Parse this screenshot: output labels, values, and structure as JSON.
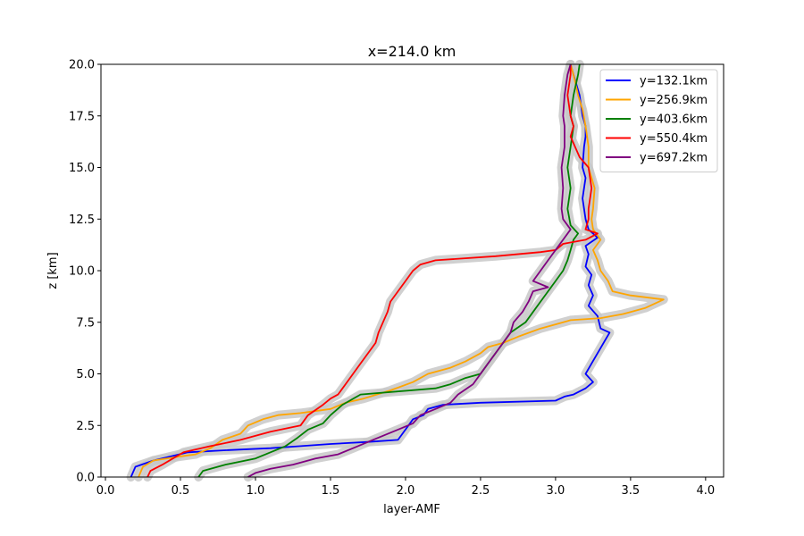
{
  "chart_data": {
    "type": "line",
    "title": "x=214.0 km",
    "xlabel": "layer-AMF",
    "ylabel": "z [km]",
    "xlim": [
      -0.03,
      4.12
    ],
    "ylim": [
      0,
      20
    ],
    "xticks": [
      "0.0",
      "0.5",
      "1.0",
      "1.5",
      "2.0",
      "2.5",
      "3.0",
      "3.5",
      "4.0"
    ],
    "yticks": [
      "0.0",
      "2.5",
      "5.0",
      "7.5",
      "10.0",
      "12.5",
      "15.0",
      "17.5",
      "20.0"
    ],
    "legend_position": "top-right",
    "grid": false,
    "uncertainty_band": true,
    "series": [
      {
        "name": "y=132.1km",
        "color": "#0000ff",
        "points": [
          [
            0.17,
            0.0
          ],
          [
            0.2,
            0.5
          ],
          [
            0.32,
            0.8
          ],
          [
            0.55,
            1.2
          ],
          [
            0.8,
            1.3
          ],
          [
            1.1,
            1.4
          ],
          [
            1.3,
            1.5
          ],
          [
            1.5,
            1.6
          ],
          [
            1.75,
            1.7
          ],
          [
            1.95,
            1.8
          ],
          [
            2.0,
            2.3
          ],
          [
            2.05,
            2.8
          ],
          [
            2.12,
            3.0
          ],
          [
            2.15,
            3.3
          ],
          [
            2.25,
            3.5
          ],
          [
            2.5,
            3.6
          ],
          [
            3.0,
            3.7
          ],
          [
            3.06,
            3.9
          ],
          [
            3.12,
            4.0
          ],
          [
            3.2,
            4.3
          ],
          [
            3.25,
            4.6
          ],
          [
            3.2,
            5.0
          ],
          [
            3.24,
            5.5
          ],
          [
            3.28,
            6.0
          ],
          [
            3.32,
            6.5
          ],
          [
            3.36,
            7.0
          ],
          [
            3.3,
            7.2
          ],
          [
            3.28,
            7.8
          ],
          [
            3.22,
            8.3
          ],
          [
            3.25,
            8.8
          ],
          [
            3.22,
            9.3
          ],
          [
            3.24,
            9.8
          ],
          [
            3.2,
            10.2
          ],
          [
            3.22,
            10.8
          ],
          [
            3.2,
            11.2
          ],
          [
            3.28,
            11.6
          ],
          [
            3.22,
            12.0
          ],
          [
            3.2,
            12.5
          ],
          [
            3.18,
            13.5
          ],
          [
            3.2,
            14.5
          ],
          [
            3.18,
            15.0
          ],
          [
            3.19,
            16.0
          ],
          [
            3.2,
            16.5
          ],
          [
            3.2,
            17.0
          ],
          [
            3.18,
            17.5
          ],
          [
            3.16,
            18.5
          ],
          [
            3.12,
            19.5
          ],
          [
            3.1,
            20.0
          ]
        ]
      },
      {
        "name": "y=256.9km",
        "color": "#ffa500",
        "points": [
          [
            0.22,
            0.0
          ],
          [
            0.25,
            0.5
          ],
          [
            0.32,
            0.8
          ],
          [
            0.5,
            1.0
          ],
          [
            0.6,
            1.1
          ],
          [
            0.7,
            1.4
          ],
          [
            0.78,
            1.8
          ],
          [
            0.9,
            2.1
          ],
          [
            0.95,
            2.5
          ],
          [
            1.05,
            2.8
          ],
          [
            1.15,
            3.0
          ],
          [
            1.3,
            3.1
          ],
          [
            1.5,
            3.3
          ],
          [
            1.6,
            3.6
          ],
          [
            1.72,
            3.8
          ],
          [
            1.9,
            4.2
          ],
          [
            2.05,
            4.6
          ],
          [
            2.15,
            5.0
          ],
          [
            2.3,
            5.3
          ],
          [
            2.4,
            5.6
          ],
          [
            2.5,
            6.0
          ],
          [
            2.55,
            6.3
          ],
          [
            2.65,
            6.5
          ],
          [
            2.75,
            6.8
          ],
          [
            2.9,
            7.2
          ],
          [
            3.0,
            7.4
          ],
          [
            3.1,
            7.6
          ],
          [
            3.3,
            7.7
          ],
          [
            3.45,
            7.9
          ],
          [
            3.5,
            8.0
          ],
          [
            3.6,
            8.2
          ],
          [
            3.72,
            8.6
          ],
          [
            3.5,
            8.8
          ],
          [
            3.38,
            9.0
          ],
          [
            3.35,
            9.5
          ],
          [
            3.3,
            10.0
          ],
          [
            3.28,
            10.5
          ],
          [
            3.25,
            11.0
          ],
          [
            3.3,
            11.5
          ],
          [
            3.25,
            12.0
          ],
          [
            3.24,
            12.5
          ],
          [
            3.25,
            13.0
          ],
          [
            3.26,
            14.0
          ],
          [
            3.22,
            15.0
          ],
          [
            3.22,
            16.0
          ],
          [
            3.2,
            17.0
          ],
          [
            3.18,
            17.8
          ],
          [
            3.15,
            18.5
          ],
          [
            3.12,
            19.5
          ],
          [
            3.1,
            20.0
          ]
        ]
      },
      {
        "name": "y=403.6km",
        "color": "#008000",
        "points": [
          [
            0.62,
            0.0
          ],
          [
            0.65,
            0.3
          ],
          [
            0.8,
            0.6
          ],
          [
            1.0,
            0.9
          ],
          [
            1.1,
            1.2
          ],
          [
            1.2,
            1.5
          ],
          [
            1.28,
            1.9
          ],
          [
            1.35,
            2.3
          ],
          [
            1.45,
            2.6
          ],
          [
            1.5,
            3.0
          ],
          [
            1.58,
            3.5
          ],
          [
            1.7,
            4.0
          ],
          [
            2.2,
            4.3
          ],
          [
            2.3,
            4.5
          ],
          [
            2.4,
            4.8
          ],
          [
            2.5,
            5.0
          ],
          [
            2.55,
            5.5
          ],
          [
            2.6,
            6.0
          ],
          [
            2.65,
            6.5
          ],
          [
            2.7,
            7.0
          ],
          [
            2.8,
            7.5
          ],
          [
            2.85,
            8.0
          ],
          [
            2.9,
            8.5
          ],
          [
            2.95,
            9.0
          ],
          [
            3.0,
            9.5
          ],
          [
            3.05,
            10.0
          ],
          [
            3.08,
            10.5
          ],
          [
            3.1,
            11.0
          ],
          [
            3.12,
            11.5
          ],
          [
            3.15,
            11.8
          ],
          [
            3.1,
            12.2
          ],
          [
            3.08,
            13.0
          ],
          [
            3.1,
            14.0
          ],
          [
            3.08,
            15.0
          ],
          [
            3.1,
            16.0
          ],
          [
            3.12,
            17.0
          ],
          [
            3.1,
            17.5
          ],
          [
            3.12,
            18.5
          ],
          [
            3.15,
            19.5
          ],
          [
            3.16,
            20.0
          ]
        ]
      },
      {
        "name": "y=550.4km",
        "color": "#ff0000",
        "points": [
          [
            0.28,
            0.0
          ],
          [
            0.3,
            0.3
          ],
          [
            0.38,
            0.6
          ],
          [
            0.45,
            0.9
          ],
          [
            0.52,
            1.2
          ],
          [
            0.7,
            1.5
          ],
          [
            0.9,
            1.8
          ],
          [
            1.1,
            2.2
          ],
          [
            1.3,
            2.5
          ],
          [
            1.35,
            3.0
          ],
          [
            1.45,
            3.5
          ],
          [
            1.5,
            3.8
          ],
          [
            1.55,
            4.0
          ],
          [
            1.6,
            4.5
          ],
          [
            1.65,
            5.0
          ],
          [
            1.7,
            5.5
          ],
          [
            1.75,
            6.0
          ],
          [
            1.8,
            6.5
          ],
          [
            1.82,
            7.0
          ],
          [
            1.85,
            7.5
          ],
          [
            1.88,
            8.0
          ],
          [
            1.9,
            8.5
          ],
          [
            1.95,
            9.0
          ],
          [
            2.0,
            9.5
          ],
          [
            2.05,
            10.0
          ],
          [
            2.1,
            10.3
          ],
          [
            2.2,
            10.5
          ],
          [
            2.6,
            10.7
          ],
          [
            2.9,
            10.9
          ],
          [
            3.0,
            11.0
          ],
          [
            3.05,
            11.3
          ],
          [
            3.2,
            11.5
          ],
          [
            3.28,
            11.8
          ],
          [
            3.2,
            12.0
          ],
          [
            3.22,
            12.5
          ],
          [
            3.22,
            13.0
          ],
          [
            3.24,
            14.0
          ],
          [
            3.22,
            15.0
          ],
          [
            3.16,
            15.5
          ],
          [
            3.1,
            16.5
          ],
          [
            3.12,
            17.0
          ],
          [
            3.1,
            17.5
          ],
          [
            3.08,
            18.5
          ],
          [
            3.1,
            19.5
          ],
          [
            3.1,
            20.0
          ]
        ]
      },
      {
        "name": "y=697.2km",
        "color": "#800080",
        "points": [
          [
            0.95,
            0.0
          ],
          [
            1.0,
            0.2
          ],
          [
            1.1,
            0.4
          ],
          [
            1.25,
            0.6
          ],
          [
            1.4,
            0.9
          ],
          [
            1.55,
            1.1
          ],
          [
            1.65,
            1.4
          ],
          [
            1.75,
            1.7
          ],
          [
            1.85,
            2.0
          ],
          [
            1.95,
            2.3
          ],
          [
            2.05,
            2.6
          ],
          [
            2.1,
            3.0
          ],
          [
            2.2,
            3.3
          ],
          [
            2.3,
            3.6
          ],
          [
            2.35,
            4.0
          ],
          [
            2.45,
            4.5
          ],
          [
            2.5,
            5.0
          ],
          [
            2.55,
            5.5
          ],
          [
            2.6,
            6.0
          ],
          [
            2.65,
            6.5
          ],
          [
            2.7,
            7.0
          ],
          [
            2.72,
            7.5
          ],
          [
            2.78,
            8.0
          ],
          [
            2.82,
            8.5
          ],
          [
            2.85,
            9.0
          ],
          [
            2.95,
            9.2
          ],
          [
            2.85,
            9.5
          ],
          [
            2.9,
            10.0
          ],
          [
            2.95,
            10.5
          ],
          [
            3.0,
            11.0
          ],
          [
            3.05,
            11.5
          ],
          [
            3.1,
            12.0
          ],
          [
            3.05,
            12.5
          ],
          [
            3.04,
            13.0
          ],
          [
            3.05,
            14.0
          ],
          [
            3.04,
            15.0
          ],
          [
            3.06,
            16.0
          ],
          [
            3.06,
            17.0
          ],
          [
            3.05,
            17.5
          ],
          [
            3.06,
            18.5
          ],
          [
            3.08,
            19.5
          ],
          [
            3.1,
            20.0
          ]
        ]
      }
    ]
  }
}
